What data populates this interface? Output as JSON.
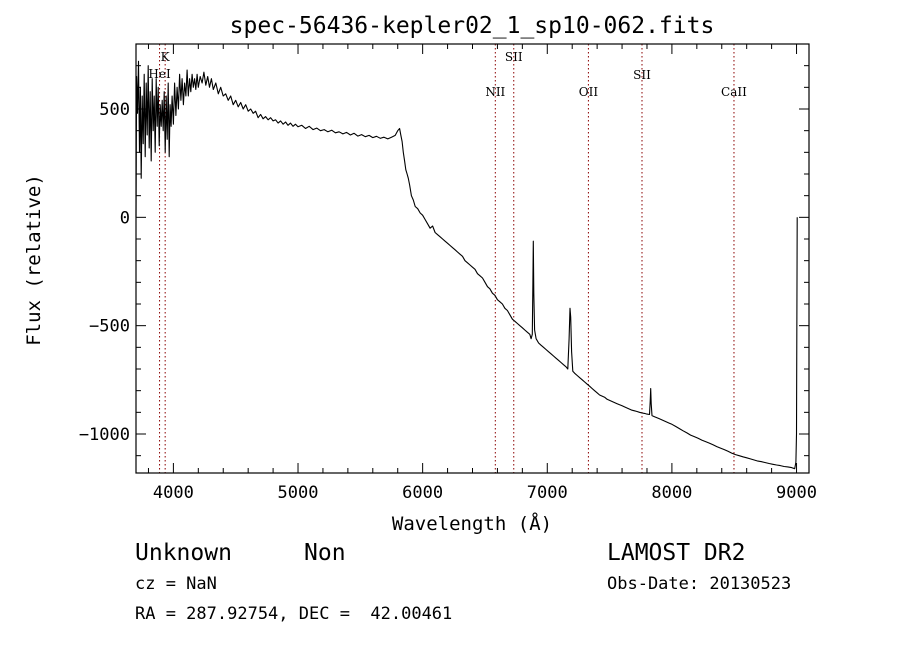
{
  "chart_data": {
    "type": "line",
    "title": "spec-56436-kepler02_1_sp10-062.fits",
    "xlabel": "Wavelength (Å)",
    "ylabel": "Flux (relative)",
    "xlim": [
      3700,
      9100
    ],
    "ylim": [
      -1180,
      800
    ],
    "x_ticks": [
      4000,
      5000,
      6000,
      7000,
      8000,
      9000
    ],
    "y_ticks": [
      500,
      0,
      -500,
      -1000
    ],
    "grid": false,
    "series": [
      {
        "color": "#000000",
        "points": [
          [
            3700,
            0
          ],
          [
            3705,
            650
          ],
          [
            3712,
            480
          ],
          [
            3720,
            720
          ],
          [
            3728,
            300
          ],
          [
            3735,
            600
          ],
          [
            3742,
            180
          ],
          [
            3750,
            560
          ],
          [
            3758,
            340
          ],
          [
            3766,
            660
          ],
          [
            3774,
            280
          ],
          [
            3782,
            620
          ],
          [
            3790,
            380
          ],
          [
            3798,
            700
          ],
          [
            3806,
            320
          ],
          [
            3814,
            580
          ],
          [
            3822,
            260
          ],
          [
            3830,
            640
          ],
          [
            3838,
            400
          ],
          [
            3846,
            560
          ],
          [
            3854,
            300
          ],
          [
            3862,
            640
          ],
          [
            3870,
            420
          ],
          [
            3878,
            600
          ],
          [
            3886,
            330
          ],
          [
            3894,
            520
          ],
          [
            3902,
            420
          ],
          [
            3910,
            540
          ],
          [
            3918,
            400
          ],
          [
            3926,
            580
          ],
          [
            3934,
            300
          ],
          [
            3942,
            560
          ],
          [
            3950,
            360
          ],
          [
            3958,
            620
          ],
          [
            3966,
            280
          ],
          [
            3974,
            520
          ],
          [
            3982,
            420
          ],
          [
            3990,
            560
          ],
          [
            4000,
            430
          ],
          [
            4010,
            620
          ],
          [
            4020,
            470
          ],
          [
            4030,
            600
          ],
          [
            4040,
            500
          ],
          [
            4050,
            660
          ],
          [
            4060,
            540
          ],
          [
            4070,
            640
          ],
          [
            4080,
            520
          ],
          [
            4090,
            620
          ],
          [
            4100,
            560
          ],
          [
            4110,
            680
          ],
          [
            4120,
            560
          ],
          [
            4130,
            640
          ],
          [
            4140,
            580
          ],
          [
            4150,
            660
          ],
          [
            4160,
            600
          ],
          [
            4170,
            640
          ],
          [
            4180,
            590
          ],
          [
            4190,
            660
          ],
          [
            4200,
            600
          ],
          [
            4215,
            650
          ],
          [
            4230,
            620
          ],
          [
            4245,
            670
          ],
          [
            4260,
            610
          ],
          [
            4275,
            650
          ],
          [
            4290,
            600
          ],
          [
            4305,
            640
          ],
          [
            4320,
            590
          ],
          [
            4340,
            620
          ],
          [
            4360,
            570
          ],
          [
            4380,
            600
          ],
          [
            4400,
            560
          ],
          [
            4420,
            570
          ],
          [
            4440,
            540
          ],
          [
            4460,
            560
          ],
          [
            4480,
            520
          ],
          [
            4500,
            540
          ],
          [
            4520,
            510
          ],
          [
            4540,
            530
          ],
          [
            4560,
            500
          ],
          [
            4580,
            520
          ],
          [
            4600,
            490
          ],
          [
            4620,
            500
          ],
          [
            4640,
            480
          ],
          [
            4660,
            490
          ],
          [
            4680,
            460
          ],
          [
            4700,
            475
          ],
          [
            4720,
            455
          ],
          [
            4740,
            465
          ],
          [
            4760,
            450
          ],
          [
            4780,
            460
          ],
          [
            4800,
            445
          ],
          [
            4820,
            450
          ],
          [
            4840,
            435
          ],
          [
            4860,
            445
          ],
          [
            4880,
            430
          ],
          [
            4900,
            440
          ],
          [
            4920,
            425
          ],
          [
            4940,
            435
          ],
          [
            4960,
            420
          ],
          [
            4980,
            430
          ],
          [
            5000,
            418
          ],
          [
            5030,
            425
          ],
          [
            5060,
            410
          ],
          [
            5090,
            420
          ],
          [
            5120,
            405
          ],
          [
            5150,
            412
          ],
          [
            5180,
            400
          ],
          [
            5210,
            405
          ],
          [
            5240,
            395
          ],
          [
            5270,
            402
          ],
          [
            5300,
            390
          ],
          [
            5330,
            395
          ],
          [
            5360,
            385
          ],
          [
            5390,
            392
          ],
          [
            5420,
            380
          ],
          [
            5450,
            388
          ],
          [
            5480,
            375
          ],
          [
            5510,
            382
          ],
          [
            5540,
            372
          ],
          [
            5570,
            378
          ],
          [
            5600,
            368
          ],
          [
            5630,
            374
          ],
          [
            5660,
            365
          ],
          [
            5690,
            370
          ],
          [
            5720,
            362
          ],
          [
            5750,
            370
          ],
          [
            5780,
            378
          ],
          [
            5800,
            400
          ],
          [
            5815,
            410
          ],
          [
            5825,
            380
          ],
          [
            5835,
            350
          ],
          [
            5845,
            300
          ],
          [
            5855,
            260
          ],
          [
            5865,
            220
          ],
          [
            5875,
            200
          ],
          [
            5885,
            180
          ],
          [
            5895,
            150
          ],
          [
            5910,
            100
          ],
          [
            5925,
            80
          ],
          [
            5940,
            50
          ],
          [
            5960,
            40
          ],
          [
            5980,
            20
          ],
          [
            6000,
            10
          ],
          [
            6020,
            -10
          ],
          [
            6040,
            -30
          ],
          [
            6060,
            -50
          ],
          [
            6080,
            -40
          ],
          [
            6100,
            -70
          ],
          [
            6120,
            -80
          ],
          [
            6140,
            -90
          ],
          [
            6160,
            -100
          ],
          [
            6180,
            -110
          ],
          [
            6200,
            -120
          ],
          [
            6220,
            -130
          ],
          [
            6240,
            -140
          ],
          [
            6260,
            -150
          ],
          [
            6280,
            -160
          ],
          [
            6300,
            -170
          ],
          [
            6320,
            -180
          ],
          [
            6340,
            -200
          ],
          [
            6360,
            -210
          ],
          [
            6380,
            -220
          ],
          [
            6400,
            -230
          ],
          [
            6420,
            -240
          ],
          [
            6440,
            -260
          ],
          [
            6460,
            -270
          ],
          [
            6480,
            -280
          ],
          [
            6500,
            -300
          ],
          [
            6520,
            -320
          ],
          [
            6540,
            -330
          ],
          [
            6560,
            -350
          ],
          [
            6580,
            -360
          ],
          [
            6600,
            -380
          ],
          [
            6620,
            -390
          ],
          [
            6640,
            -400
          ],
          [
            6660,
            -420
          ],
          [
            6680,
            -430
          ],
          [
            6700,
            -450
          ],
          [
            6720,
            -470
          ],
          [
            6740,
            -480
          ],
          [
            6760,
            -490
          ],
          [
            6780,
            -500
          ],
          [
            6800,
            -510
          ],
          [
            6820,
            -520
          ],
          [
            6840,
            -530
          ],
          [
            6860,
            -540
          ],
          [
            6870,
            -560
          ],
          [
            6880,
            -540
          ],
          [
            6885,
            -300
          ],
          [
            6888,
            -110
          ],
          [
            6892,
            -350
          ],
          [
            6898,
            -520
          ],
          [
            6910,
            -560
          ],
          [
            6930,
            -580
          ],
          [
            6950,
            -590
          ],
          [
            6970,
            -600
          ],
          [
            6990,
            -610
          ],
          [
            7010,
            -620
          ],
          [
            7030,
            -630
          ],
          [
            7050,
            -640
          ],
          [
            7070,
            -650
          ],
          [
            7090,
            -660
          ],
          [
            7110,
            -670
          ],
          [
            7130,
            -680
          ],
          [
            7150,
            -690
          ],
          [
            7165,
            -700
          ],
          [
            7175,
            -560
          ],
          [
            7182,
            -420
          ],
          [
            7188,
            -460
          ],
          [
            7195,
            -620
          ],
          [
            7205,
            -710
          ],
          [
            7220,
            -720
          ],
          [
            7240,
            -730
          ],
          [
            7260,
            -740
          ],
          [
            7280,
            -750
          ],
          [
            7300,
            -760
          ],
          [
            7320,
            -770
          ],
          [
            7340,
            -780
          ],
          [
            7360,
            -790
          ],
          [
            7380,
            -800
          ],
          [
            7400,
            -810
          ],
          [
            7420,
            -820
          ],
          [
            7440,
            -825
          ],
          [
            7460,
            -830
          ],
          [
            7480,
            -840
          ],
          [
            7500,
            -845
          ],
          [
            7520,
            -850
          ],
          [
            7540,
            -855
          ],
          [
            7560,
            -860
          ],
          [
            7580,
            -865
          ],
          [
            7600,
            -870
          ],
          [
            7620,
            -875
          ],
          [
            7640,
            -880
          ],
          [
            7660,
            -885
          ],
          [
            7680,
            -890
          ],
          [
            7700,
            -893
          ],
          [
            7720,
            -896
          ],
          [
            7740,
            -900
          ],
          [
            7760,
            -903
          ],
          [
            7780,
            -905
          ],
          [
            7800,
            -908
          ],
          [
            7820,
            -910
          ],
          [
            7826,
            -850
          ],
          [
            7830,
            -790
          ],
          [
            7834,
            -860
          ],
          [
            7840,
            -915
          ],
          [
            7860,
            -920
          ],
          [
            7880,
            -925
          ],
          [
            7900,
            -930
          ],
          [
            7920,
            -935
          ],
          [
            7940,
            -940
          ],
          [
            7960,
            -945
          ],
          [
            7980,
            -950
          ],
          [
            8000,
            -955
          ],
          [
            8030,
            -965
          ],
          [
            8060,
            -975
          ],
          [
            8090,
            -985
          ],
          [
            8120,
            -995
          ],
          [
            8150,
            -1005
          ],
          [
            8180,
            -1012
          ],
          [
            8210,
            -1020
          ],
          [
            8240,
            -1028
          ],
          [
            8270,
            -1035
          ],
          [
            8300,
            -1042
          ],
          [
            8330,
            -1050
          ],
          [
            8360,
            -1058
          ],
          [
            8390,
            -1065
          ],
          [
            8420,
            -1072
          ],
          [
            8450,
            -1080
          ],
          [
            8480,
            -1088
          ],
          [
            8510,
            -1095
          ],
          [
            8540,
            -1100
          ],
          [
            8570,
            -1105
          ],
          [
            8600,
            -1110
          ],
          [
            8630,
            -1115
          ],
          [
            8660,
            -1120
          ],
          [
            8690,
            -1125
          ],
          [
            8720,
            -1128
          ],
          [
            8750,
            -1132
          ],
          [
            8780,
            -1136
          ],
          [
            8810,
            -1140
          ],
          [
            8840,
            -1143
          ],
          [
            8870,
            -1146
          ],
          [
            8900,
            -1150
          ],
          [
            8930,
            -1152
          ],
          [
            8960,
            -1155
          ],
          [
            8985,
            -1160
          ],
          [
            8995,
            -1130
          ],
          [
            9000,
            -1000
          ],
          [
            9005,
            0
          ]
        ]
      }
    ],
    "annotations": [
      {
        "label": "K",
        "x": 3934
      },
      {
        "label": "HeI",
        "x": 3889
      },
      {
        "label": "NII",
        "x": 6583
      },
      {
        "label": "SII",
        "x": 6731
      },
      {
        "label": "OII",
        "x": 7330
      },
      {
        "label": "SII",
        "x": 7760
      },
      {
        "label": "CaII",
        "x": 8498
      }
    ],
    "line_color": "#000000",
    "marker_color": "#8b0000"
  },
  "info": {
    "object_class": "Unknown",
    "object_subclass": "Non",
    "redshift": "cz = NaN",
    "coords": "RA = 287.92754, DEC =  42.00461",
    "survey": "LAMOST DR2",
    "obs_date": "Obs-Date: 20130523"
  }
}
